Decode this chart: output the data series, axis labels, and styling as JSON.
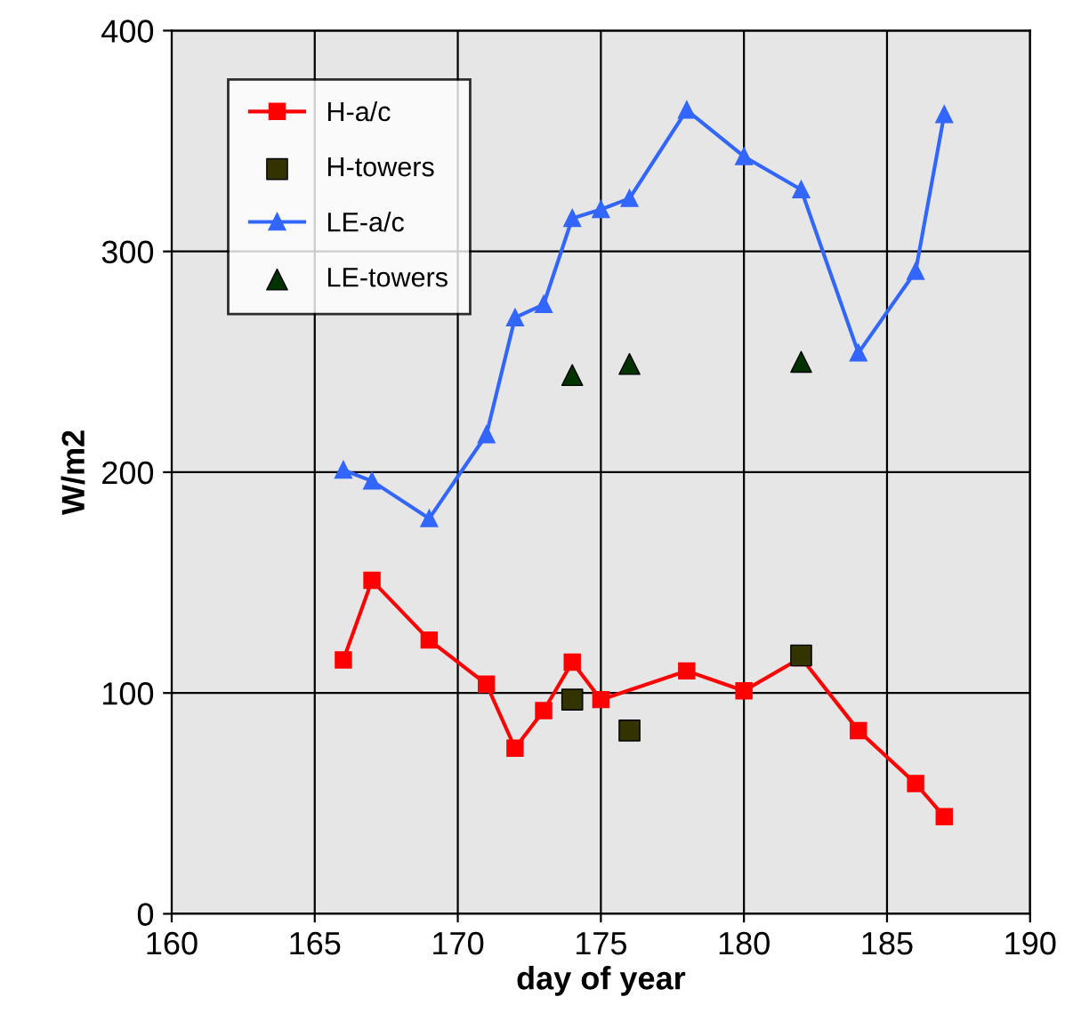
{
  "chart_data": {
    "type": "line",
    "xlabel": "day of year",
    "ylabel": "W/m2",
    "xlim": [
      160,
      190
    ],
    "xticks": [
      160,
      165,
      170,
      175,
      180,
      185,
      190
    ],
    "ylim": [
      0,
      400
    ],
    "yticks": [
      0,
      100,
      200,
      300,
      400
    ],
    "grid": true,
    "legend": "top left",
    "series": [
      {
        "name": "H-a/c",
        "color": "#ff0000",
        "marker": "square",
        "x": [
          166,
          167,
          169,
          171,
          172,
          173,
          174,
          175,
          178,
          180,
          182,
          184,
          186,
          187
        ],
        "values": [
          115,
          151,
          124,
          104,
          75,
          92,
          114,
          97,
          110,
          101,
          116,
          83,
          59,
          44
        ]
      },
      {
        "name": "H-towers",
        "type": "scatter",
        "color": "#333300",
        "marker": "square",
        "x": [
          174,
          176,
          182
        ],
        "values": [
          97,
          83,
          117
        ]
      },
      {
        "name": "LE-a/c",
        "color": "#3366ff",
        "marker": "triangle",
        "x": [
          166,
          167,
          169,
          171,
          172,
          173,
          174,
          175,
          176,
          178,
          180,
          182,
          184,
          186,
          187
        ],
        "values": [
          201,
          196,
          179,
          217,
          270,
          276,
          315,
          319,
          324,
          364,
          343,
          328,
          254,
          291,
          362
        ]
      },
      {
        "name": "LE-towers",
        "type": "scatter",
        "color": "#003300",
        "marker": "triangle",
        "x": [
          174,
          176,
          182
        ],
        "values": [
          244,
          249,
          250
        ]
      }
    ]
  }
}
